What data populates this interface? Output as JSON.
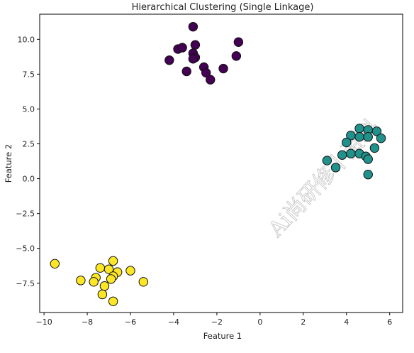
{
  "chart_data": {
    "type": "scatter",
    "title": "Hierarchical Clustering (Single Linkage)",
    "xlabel": "Feature 1",
    "ylabel": "Feature 2",
    "xlim": [
      -10.2,
      6.6
    ],
    "ylim": [
      -9.6,
      11.8
    ],
    "grid": false,
    "xticks": [
      -10,
      -8,
      -6,
      -4,
      -2,
      0,
      2,
      4,
      6
    ],
    "yticks": [
      -7.5,
      -5.0,
      -2.5,
      0.0,
      2.5,
      5.0,
      7.5,
      10.0
    ],
    "xtick_labels": [
      "−10",
      "−8",
      "−6",
      "−4",
      "−2",
      "0",
      "2",
      "4",
      "6"
    ],
    "ytick_labels": [
      "−7.5",
      "−5.0",
      "−2.5",
      "0.0",
      "2.5",
      "5.0",
      "7.5",
      "10.0"
    ],
    "watermark": "Ai尚研修丨资料",
    "series": [
      {
        "color": "#440154",
        "points": [
          [
            -3.1,
            10.9
          ],
          [
            -1.0,
            9.8
          ],
          [
            -3.8,
            9.3
          ],
          [
            -3.6,
            9.4
          ],
          [
            -3.0,
            9.6
          ],
          [
            -3.1,
            9.0
          ],
          [
            -3.0,
            8.7
          ],
          [
            -1.1,
            8.8
          ],
          [
            -4.2,
            8.5
          ],
          [
            -3.1,
            8.6
          ],
          [
            -2.6,
            8.0
          ],
          [
            -1.7,
            7.9
          ],
          [
            -3.4,
            7.7
          ],
          [
            -2.5,
            7.6
          ],
          [
            -2.3,
            7.1
          ]
        ]
      },
      {
        "color": "#21918c",
        "points": [
          [
            4.6,
            3.6
          ],
          [
            5.0,
            3.5
          ],
          [
            5.4,
            3.4
          ],
          [
            4.2,
            3.1
          ],
          [
            4.6,
            3.0
          ],
          [
            5.0,
            3.0
          ],
          [
            5.6,
            2.9
          ],
          [
            4.0,
            2.6
          ],
          [
            5.3,
            2.2
          ],
          [
            4.2,
            1.8
          ],
          [
            4.6,
            1.8
          ],
          [
            3.8,
            1.7
          ],
          [
            4.9,
            1.6
          ],
          [
            5.0,
            1.4
          ],
          [
            3.1,
            1.3
          ],
          [
            3.5,
            0.8
          ],
          [
            5.0,
            0.3
          ]
        ]
      },
      {
        "color": "#fde725",
        "points": [
          [
            -6.8,
            -5.9
          ],
          [
            -9.5,
            -6.1
          ],
          [
            -7.4,
            -6.4
          ],
          [
            -7.0,
            -6.5
          ],
          [
            -6.0,
            -6.6
          ],
          [
            -6.6,
            -6.7
          ],
          [
            -6.8,
            -7.0
          ],
          [
            -7.6,
            -7.1
          ],
          [
            -6.9,
            -7.2
          ],
          [
            -8.3,
            -7.3
          ],
          [
            -7.7,
            -7.4
          ],
          [
            -5.4,
            -7.4
          ],
          [
            -7.2,
            -7.7
          ],
          [
            -7.3,
            -8.3
          ],
          [
            -6.8,
            -8.8
          ]
        ]
      }
    ]
  }
}
